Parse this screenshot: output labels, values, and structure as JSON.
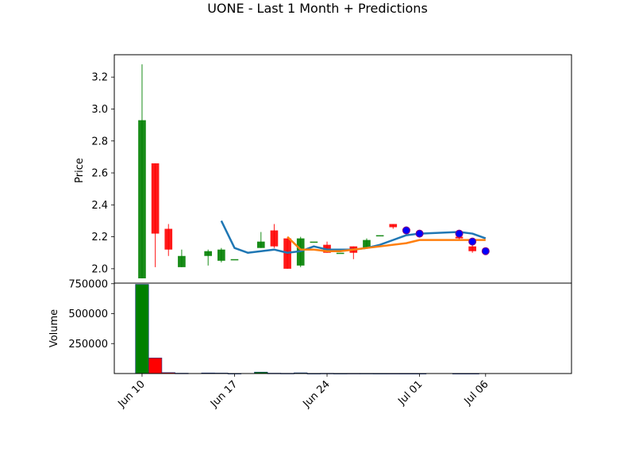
{
  "chart_data": {
    "type": "candlestick",
    "title": "UONE - Last 1 Month + Predictions",
    "price_panel": {
      "ylabel": "Price",
      "ylim": [
        1.91,
        3.34
      ],
      "yticks": [
        2.0,
        2.2,
        2.4,
        2.6,
        2.8,
        3.0,
        3.2
      ],
      "ytick_labels": [
        "2.0",
        "2.2",
        "2.4",
        "2.6",
        "2.8",
        "3.0",
        "3.2"
      ]
    },
    "volume_panel": {
      "ylabel": "Volume",
      "ylim": [
        0,
        755000
      ],
      "yticks": [
        250000,
        500000,
        750000
      ],
      "ytick_labels": [
        "250000",
        "500000",
        "750000"
      ]
    },
    "x_axis": {
      "ticks": [
        {
          "day": 0,
          "label": "Jun 10"
        },
        {
          "day": 7,
          "label": "Jun 17"
        },
        {
          "day": 14,
          "label": "Jun 24"
        },
        {
          "day": 21,
          "label": "Jul 01"
        },
        {
          "day": 26,
          "label": "Jul 06"
        }
      ],
      "xlim": [
        -2.1,
        32.5
      ]
    },
    "candles": [
      {
        "day": 0,
        "open": 1.94,
        "high": 3.28,
        "low": 1.94,
        "close": 2.93,
        "volume": 745000
      },
      {
        "day": 1,
        "open": 2.66,
        "high": 2.66,
        "low": 2.01,
        "close": 2.22,
        "volume": 130000
      },
      {
        "day": 2,
        "open": 2.25,
        "high": 2.28,
        "low": 2.08,
        "close": 2.12,
        "volume": 8000
      },
      {
        "day": 3,
        "open": 2.01,
        "high": 2.12,
        "low": 2.01,
        "close": 2.08,
        "volume": 3000
      },
      {
        "day": 5,
        "open": 2.08,
        "high": 2.12,
        "low": 2.02,
        "close": 2.11,
        "volume": 5000
      },
      {
        "day": 6,
        "open": 2.05,
        "high": 2.13,
        "low": 2.04,
        "close": 2.12,
        "volume": 4000
      },
      {
        "day": 7,
        "open": 2.06,
        "high": 2.06,
        "low": 2.06,
        "close": 2.06,
        "volume": 1000
      },
      {
        "day": 9,
        "open": 2.13,
        "high": 2.23,
        "low": 2.13,
        "close": 2.17,
        "volume": 12000
      },
      {
        "day": 10,
        "open": 2.24,
        "high": 2.28,
        "low": 2.13,
        "close": 2.14,
        "volume": 3000
      },
      {
        "day": 11,
        "open": 2.19,
        "high": 2.19,
        "low": 2.0,
        "close": 2.0,
        "volume": 2000
      },
      {
        "day": 12,
        "open": 2.02,
        "high": 2.2,
        "low": 2.01,
        "close": 2.19,
        "volume": 6000
      },
      {
        "day": 13,
        "open": 2.17,
        "high": 2.17,
        "low": 2.17,
        "close": 2.17,
        "volume": 1000
      },
      {
        "day": 14,
        "open": 2.15,
        "high": 2.17,
        "low": 2.1,
        "close": 2.1,
        "volume": 2000
      },
      {
        "day": 15,
        "open": 2.1,
        "high": 2.1,
        "low": 2.1,
        "close": 2.1,
        "volume": 1000
      },
      {
        "day": 16,
        "open": 2.14,
        "high": 2.14,
        "low": 2.06,
        "close": 2.1,
        "volume": 1500
      },
      {
        "day": 17,
        "open": 2.13,
        "high": 2.19,
        "low": 2.13,
        "close": 2.18,
        "volume": 1500
      },
      {
        "day": 18,
        "open": 2.21,
        "high": 2.21,
        "low": 2.21,
        "close": 2.21,
        "volume": 1000
      },
      {
        "day": 19,
        "open": 2.28,
        "high": 2.28,
        "low": 2.25,
        "close": 2.26,
        "volume": 1000
      },
      {
        "day": 20,
        "open": 2.25,
        "high": 2.26,
        "low": 2.23,
        "close": 2.24,
        "volume": 800
      },
      {
        "day": 21,
        "open": 2.22,
        "high": 2.24,
        "low": 2.21,
        "close": 2.22,
        "volume": 800
      },
      {
        "day": 24,
        "open": 2.2,
        "high": 2.21,
        "low": 2.18,
        "close": 2.19,
        "volume": 800
      },
      {
        "day": 25,
        "open": 2.14,
        "high": 2.17,
        "low": 2.1,
        "close": 2.11,
        "volume": 800
      }
    ],
    "series": [
      {
        "color": "#1f77b4",
        "points": [
          {
            "day": 6,
            "value": 2.3
          },
          {
            "day": 7,
            "value": 2.13
          },
          {
            "day": 8,
            "value": 2.1
          },
          {
            "day": 10,
            "value": 2.12
          },
          {
            "day": 11,
            "value": 2.1
          },
          {
            "day": 12,
            "value": 2.11
          },
          {
            "day": 13,
            "value": 2.14
          },
          {
            "day": 14,
            "value": 2.12
          },
          {
            "day": 15,
            "value": 2.12
          },
          {
            "day": 16,
            "value": 2.12
          },
          {
            "day": 17,
            "value": 2.13
          },
          {
            "day": 18,
            "value": 2.15
          },
          {
            "day": 19,
            "value": 2.18
          },
          {
            "day": 20,
            "value": 2.21
          },
          {
            "day": 21,
            "value": 2.22
          },
          {
            "day": 24,
            "value": 2.23
          },
          {
            "day": 25,
            "value": 2.22
          },
          {
            "day": 26,
            "value": 2.19
          }
        ]
      },
      {
        "color": "#ff7f0e",
        "points": [
          {
            "day": 11,
            "value": 2.2
          },
          {
            "day": 12,
            "value": 2.12
          },
          {
            "day": 13,
            "value": 2.12
          },
          {
            "day": 14,
            "value": 2.11
          },
          {
            "day": 15,
            "value": 2.11
          },
          {
            "day": 16,
            "value": 2.12
          },
          {
            "day": 17,
            "value": 2.13
          },
          {
            "day": 18,
            "value": 2.14
          },
          {
            "day": 19,
            "value": 2.15
          },
          {
            "day": 20,
            "value": 2.16
          },
          {
            "day": 21,
            "value": 2.18
          },
          {
            "day": 24,
            "value": 2.18
          },
          {
            "day": 25,
            "value": 2.18
          },
          {
            "day": 26,
            "value": 2.18
          }
        ]
      }
    ],
    "markers": [
      {
        "day": 20,
        "value": 2.24
      },
      {
        "day": 21,
        "value": 2.22
      },
      {
        "day": 24,
        "value": 2.22
      },
      {
        "day": 25,
        "value": 2.17
      },
      {
        "day": 26,
        "value": 2.11
      }
    ],
    "colors": {
      "up": "#008000",
      "down": "#ff0000",
      "marker": "#0000ff",
      "marker_edge": "#800080"
    }
  }
}
